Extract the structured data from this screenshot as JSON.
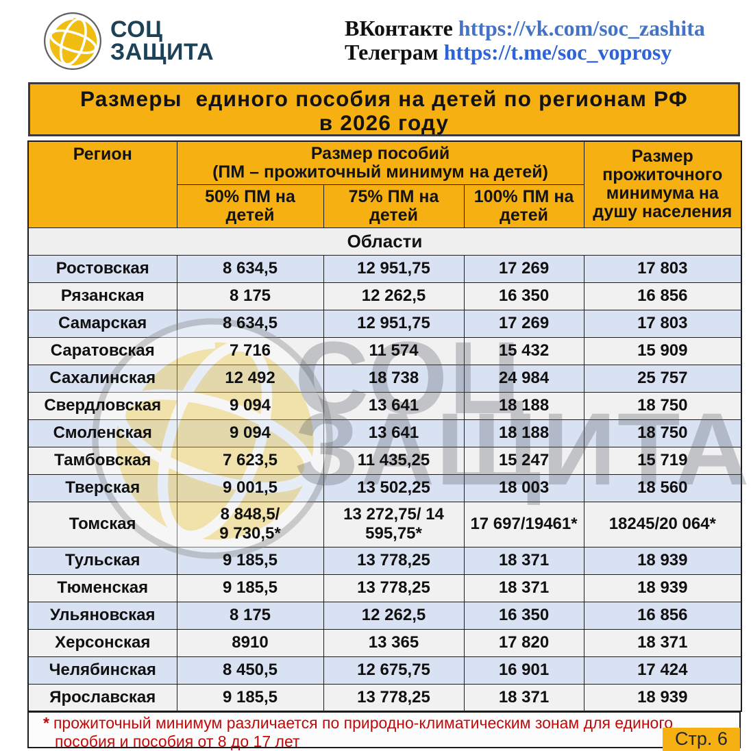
{
  "logo": {
    "line1": "СОЦ",
    "line2": "ЗАЩИТА"
  },
  "socials": {
    "vk_label": "ВКонтакте",
    "vk_url": "https://vk.com/soc_zashita",
    "tg_label": "Телеграм",
    "tg_url": "https://t.me/soc_voprosy"
  },
  "title": {
    "line1": "Размеры  единого пособия на детей по регионам РФ",
    "line2": "в 2026 году"
  },
  "table": {
    "header": {
      "region": "Регион",
      "group_line1": "Размер пособий",
      "group_line2": "(ПМ – прожиточный минимум на детей)",
      "pm50": "50% ПМ на\nдетей",
      "pm75": "75% ПМ на\nдетей",
      "pm100": "100% ПМ на\nдетей",
      "pm_capita": "Размер\nпрожиточного\nминимума на\nдушу населения"
    },
    "section_label": "Области",
    "rows": [
      {
        "region": "Ростовская",
        "pm50": "8 634,5",
        "pm75": "12 951,75",
        "pm100": "17 269",
        "pm_capita": "17 803"
      },
      {
        "region": "Рязанская",
        "pm50": "8 175",
        "pm75": "12 262,5",
        "pm100": "16 350",
        "pm_capita": "16 856"
      },
      {
        "region": "Самарская",
        "pm50": "8 634,5",
        "pm75": "12 951,75",
        "pm100": "17 269",
        "pm_capita": "17 803"
      },
      {
        "region": "Саратовская",
        "pm50": "7 716",
        "pm75": "11 574",
        "pm100": "15 432",
        "pm_capita": "15 909"
      },
      {
        "region": "Сахалинская",
        "pm50": "12 492",
        "pm75": "18 738",
        "pm100": "24 984",
        "pm_capita": "25 757"
      },
      {
        "region": "Свердловская",
        "pm50": "9 094",
        "pm75": "13 641",
        "pm100": "18 188",
        "pm_capita": "18 750"
      },
      {
        "region": "Смоленская",
        "pm50": "9 094",
        "pm75": "13 641",
        "pm100": "18 188",
        "pm_capita": "18 750"
      },
      {
        "region": "Тамбовская",
        "pm50": "7 623,5",
        "pm75": "11 435,25",
        "pm100": "15 247",
        "pm_capita": "15 719"
      },
      {
        "region": "Тверская",
        "pm50": "9 001,5",
        "pm75": "13 502,25",
        "pm100": "18 003",
        "pm_capita": "18 560"
      },
      {
        "region": "Томская",
        "pm50": "8 848,5/\n9 730,5*",
        "pm75": "13 272,75/ 14\n595,75*",
        "pm100": "17 697/19461*",
        "pm_capita": "18245/20 064*",
        "tall": true
      },
      {
        "region": "Тульская",
        "pm50": "9 185,5",
        "pm75": "13 778,25",
        "pm100": "18 371",
        "pm_capita": "18 939"
      },
      {
        "region": "Тюменская",
        "pm50": "9 185,5",
        "pm75": "13 778,25",
        "pm100": "18 371",
        "pm_capita": "18 939"
      },
      {
        "region": "Ульяновская",
        "pm50": "8 175",
        "pm75": "12 262,5",
        "pm100": "16 350",
        "pm_capita": "16 856"
      },
      {
        "region": "Херсонская",
        "pm50": "8910",
        "pm75": "13 365",
        "pm100": "17 820",
        "pm_capita": "18 371"
      },
      {
        "region": "Челябинская",
        "pm50": "8 450,5",
        "pm75": "12 675,75",
        "pm100": "16 901",
        "pm_capita": "17 424"
      },
      {
        "region": "Ярославская",
        "pm50": "9 185,5",
        "pm75": "13 778,25",
        "pm100": "18 371",
        "pm_capita": "18 939"
      }
    ]
  },
  "footnote": {
    "marker": "*",
    "text": "прожиточный минимум различается по природно-климатическим  зонам для единого пособия и пособия от 8 до 17 лет"
  },
  "page": {
    "label": "Стр. 6"
  },
  "watermark": {
    "line1": "СОЦ",
    "line2": "ЗАЩИТА"
  },
  "colors": {
    "accent_orange": "#F6B011",
    "row_blue": "#D9E2F3",
    "row_gray": "#F1F1F2",
    "footnote_red": "#C00909",
    "logo_navy": "#1D4156",
    "link_vk_blue": "#4472C4",
    "link_tg_blue": "#3A5FE0"
  }
}
